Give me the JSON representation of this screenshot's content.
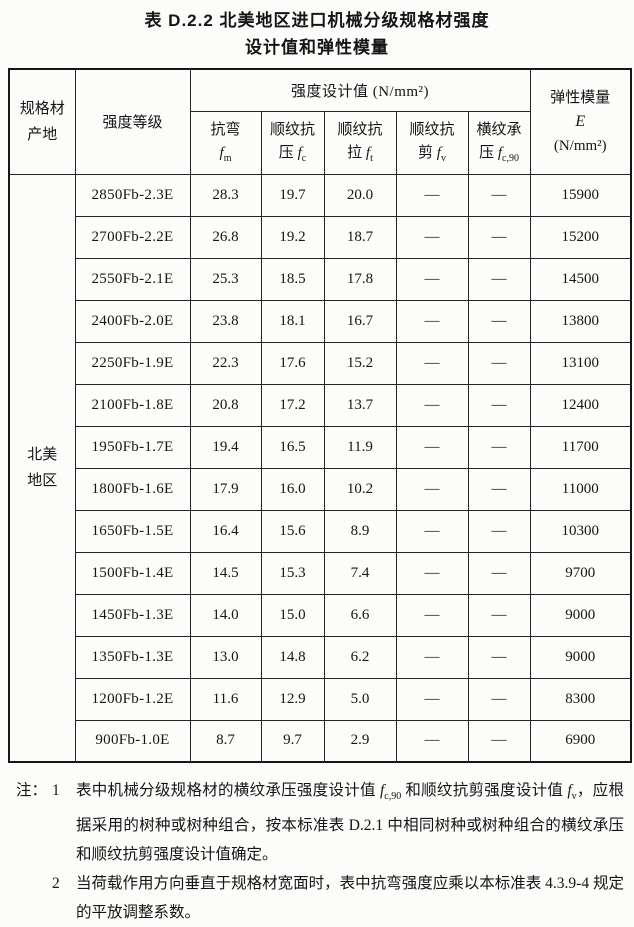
{
  "title": {
    "line1": "表 D.2.2  北美地区进口机械分级规格材强度",
    "line2": "设计值和弹性模量"
  },
  "table": {
    "header": {
      "origin": "规格材\n产地",
      "grade": "强度等级",
      "strength_group": "强度设计值 (N/mm²)",
      "sub_columns": [
        {
          "top": "抗弯",
          "prefix": "",
          "sym": "f",
          "sub": "m"
        },
        {
          "top": "顺纹抗",
          "prefix": "压 ",
          "sym": "f",
          "sub": "c"
        },
        {
          "top": "顺纹抗",
          "prefix": "拉 ",
          "sym": "f",
          "sub": "t"
        },
        {
          "top": "顺纹抗",
          "prefix": "剪 ",
          "sym": "f",
          "sub": "v"
        },
        {
          "top": "横纹承",
          "prefix": "压 ",
          "sym": "f",
          "sub": "c,90"
        }
      ],
      "modulus_title": "弹性模量",
      "modulus_sym": "E",
      "modulus_unit": "(N/mm²)"
    },
    "region": "北美\n地区",
    "rows": [
      {
        "grade": "2850Fb-2.3E",
        "fm": "28.3",
        "fc": "19.7",
        "ft": "20.0",
        "fv": "—",
        "fc90": "—",
        "E": "15900"
      },
      {
        "grade": "2700Fb-2.2E",
        "fm": "26.8",
        "fc": "19.2",
        "ft": "18.7",
        "fv": "—",
        "fc90": "—",
        "E": "15200"
      },
      {
        "grade": "2550Fb-2.1E",
        "fm": "25.3",
        "fc": "18.5",
        "ft": "17.8",
        "fv": "—",
        "fc90": "—",
        "E": "14500"
      },
      {
        "grade": "2400Fb-2.0E",
        "fm": "23.8",
        "fc": "18.1",
        "ft": "16.7",
        "fv": "—",
        "fc90": "—",
        "E": "13800"
      },
      {
        "grade": "2250Fb-1.9E",
        "fm": "22.3",
        "fc": "17.6",
        "ft": "15.2",
        "fv": "—",
        "fc90": "—",
        "E": "13100"
      },
      {
        "grade": "2100Fb-1.8E",
        "fm": "20.8",
        "fc": "17.2",
        "ft": "13.7",
        "fv": "—",
        "fc90": "—",
        "E": "12400"
      },
      {
        "grade": "1950Fb-1.7E",
        "fm": "19.4",
        "fc": "16.5",
        "ft": "11.9",
        "fv": "—",
        "fc90": "—",
        "E": "11700"
      },
      {
        "grade": "1800Fb-1.6E",
        "fm": "17.9",
        "fc": "16.0",
        "ft": "10.2",
        "fv": "—",
        "fc90": "—",
        "E": "11000"
      },
      {
        "grade": "1650Fb-1.5E",
        "fm": "16.4",
        "fc": "15.6",
        "ft": "8.9",
        "fv": "—",
        "fc90": "—",
        "E": "10300"
      },
      {
        "grade": "1500Fb-1.4E",
        "fm": "14.5",
        "fc": "15.3",
        "ft": "7.4",
        "fv": "—",
        "fc90": "—",
        "E": "9700"
      },
      {
        "grade": "1450Fb-1.3E",
        "fm": "14.0",
        "fc": "15.0",
        "ft": "6.6",
        "fv": "—",
        "fc90": "—",
        "E": "9000"
      },
      {
        "grade": "1350Fb-1.3E",
        "fm": "13.0",
        "fc": "14.8",
        "ft": "6.2",
        "fv": "—",
        "fc90": "—",
        "E": "9000"
      },
      {
        "grade": "1200Fb-1.2E",
        "fm": "11.6",
        "fc": "12.9",
        "ft": "5.0",
        "fv": "—",
        "fc90": "—",
        "E": "8300"
      },
      {
        "grade": "900Fb-1.0E",
        "fm": "8.7",
        "fc": "9.7",
        "ft": "2.9",
        "fv": "—",
        "fc90": "—",
        "E": "6900"
      }
    ]
  },
  "notes": {
    "label": "注：",
    "items": [
      {
        "num": "1",
        "part1": "表中机械分级规格材的横纹承压强度设计值 ",
        "sym1": "f",
        "sub1": "c,90",
        "part2": " 和顺纹抗剪强度设计值 ",
        "sym2": "f",
        "sub2": "v",
        "part3": "，应根据采用的树种或树种组合，按本标准表 D.2.1 中相同树种或树种组合的横纹承压和顺纹抗剪强度设计值确定。"
      },
      {
        "num": "2",
        "part1": "当荷载作用方向垂直于规格材宽面时，表中抗弯强度应乘以本标准表 4.3.9-4 规定的平放调整系数。"
      }
    ]
  }
}
